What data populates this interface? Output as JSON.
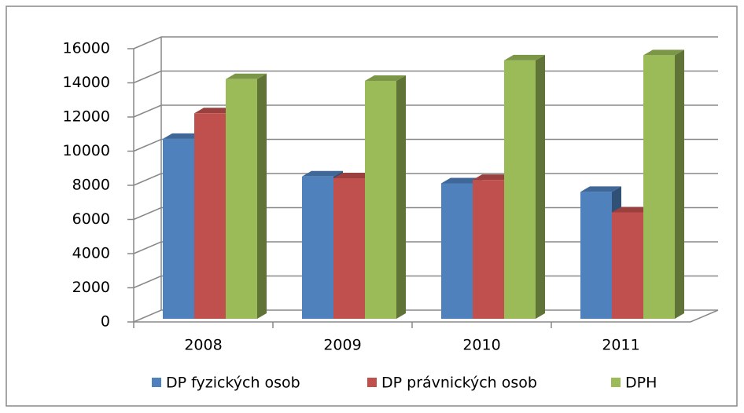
{
  "chart_data": {
    "type": "bar3d",
    "categories": [
      "2008",
      "2009",
      "2010",
      "2011"
    ],
    "series": [
      {
        "name": "DP fyzických osob",
        "color": "#4f81bd",
        "values": [
          10900,
          8700,
          8300,
          7800
        ]
      },
      {
        "name": "DP právnických osob",
        "color": "#c0504d",
        "values": [
          12400,
          8600,
          8500,
          6600
        ]
      },
      {
        "name": "DPH",
        "color": "#9bbb59",
        "values": [
          14400,
          14300,
          15500,
          15800
        ]
      }
    ],
    "ylim": [
      0,
      16000
    ],
    "yticks": [
      0,
      2000,
      4000,
      6000,
      8000,
      10000,
      12000,
      14000,
      16000
    ],
    "grid": true,
    "legend": "bottom"
  }
}
